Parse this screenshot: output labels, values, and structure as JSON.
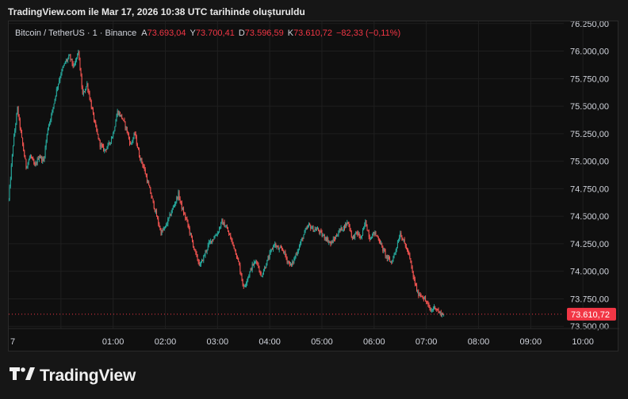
{
  "caption": "TradingView.com ile Mar 17, 2026 10:38 UTC tarihinde oluşturuldu",
  "brand": {
    "name": "TradingView",
    "logo_icon": "tradingview-logo-icon"
  },
  "legend": {
    "symbol": "Bitcoin / TetherUS · 1 · Binance",
    "open_label": "A",
    "open": "73.693,04",
    "high_label": "Y",
    "high": "73.700,41",
    "low_label": "D",
    "low": "73.596,59",
    "close_label": "K",
    "close": "73.610,72",
    "change": "−82,33 (−0,11%)"
  },
  "colors": {
    "up": "#26a69a",
    "down": "#ef5350",
    "price_tag": "#f23645",
    "grid": "#1f1f1f"
  },
  "chart_data": {
    "type": "candlestick",
    "ylim": [
      73480,
      76270
    ],
    "y_ticks": [
      73500,
      73750,
      74000,
      74250,
      74500,
      74750,
      75000,
      75250,
      75500,
      75750,
      76000,
      76250
    ],
    "y_tick_labels": [
      "73.500,00",
      "73.750,00",
      "74.000,00",
      "74.250,00",
      "74.500,00",
      "74.750,00",
      "75.000,00",
      "75.250,00",
      "75.500,00",
      "75.750,00",
      "76.000,00",
      "76.250,00"
    ],
    "x_ticks": [
      0,
      60,
      120,
      180,
      240,
      300,
      360,
      420,
      480,
      540,
      600
    ],
    "x_tick_labels": [
      "01:00",
      "02:00",
      "03:00",
      "04:00",
      "05:00",
      "06:00",
      "07:00",
      "08:00",
      "09:00",
      "10:00"
    ],
    "x_tick_first_partial": "7",
    "x_range": [
      -60,
      578
    ],
    "last_price": 73610.72,
    "last_price_label": "73.610,72",
    "path": [
      [
        -60,
        74650
      ],
      [
        -55,
        75150
      ],
      [
        -50,
        75480
      ],
      [
        -45,
        75200
      ],
      [
        -40,
        74950
      ],
      [
        -35,
        75050
      ],
      [
        -30,
        74950
      ],
      [
        -25,
        75050
      ],
      [
        -20,
        75000
      ],
      [
        -15,
        75300
      ],
      [
        -10,
        75450
      ],
      [
        -5,
        75650
      ],
      [
        0,
        75800
      ],
      [
        5,
        75900
      ],
      [
        10,
        75950
      ],
      [
        15,
        75850
      ],
      [
        20,
        76000
      ],
      [
        25,
        75600
      ],
      [
        30,
        75700
      ],
      [
        35,
        75500
      ],
      [
        40,
        75300
      ],
      [
        45,
        75150
      ],
      [
        50,
        75100
      ],
      [
        55,
        75150
      ],
      [
        60,
        75250
      ],
      [
        65,
        75450
      ],
      [
        70,
        75400
      ],
      [
        75,
        75300
      ],
      [
        80,
        75150
      ],
      [
        85,
        75250
      ],
      [
        90,
        75050
      ],
      [
        95,
        74950
      ],
      [
        100,
        74800
      ],
      [
        105,
        74650
      ],
      [
        110,
        74500
      ],
      [
        115,
        74350
      ],
      [
        120,
        74400
      ],
      [
        125,
        74500
      ],
      [
        130,
        74600
      ],
      [
        135,
        74700
      ],
      [
        140,
        74550
      ],
      [
        145,
        74450
      ],
      [
        150,
        74300
      ],
      [
        155,
        74150
      ],
      [
        160,
        74050
      ],
      [
        165,
        74150
      ],
      [
        170,
        74250
      ],
      [
        175,
        74300
      ],
      [
        180,
        74350
      ],
      [
        185,
        74450
      ],
      [
        190,
        74400
      ],
      [
        195,
        74300
      ],
      [
        200,
        74200
      ],
      [
        205,
        74050
      ],
      [
        210,
        73850
      ],
      [
        215,
        73950
      ],
      [
        220,
        74050
      ],
      [
        225,
        74100
      ],
      [
        230,
        73950
      ],
      [
        235,
        74050
      ],
      [
        240,
        74150
      ],
      [
        245,
        74250
      ],
      [
        250,
        74200
      ],
      [
        255,
        74200
      ],
      [
        260,
        74100
      ],
      [
        265,
        74050
      ],
      [
        270,
        74150
      ],
      [
        275,
        74250
      ],
      [
        280,
        74350
      ],
      [
        285,
        74420
      ],
      [
        290,
        74380
      ],
      [
        295,
        74380
      ],
      [
        300,
        74330
      ],
      [
        305,
        74300
      ],
      [
        310,
        74250
      ],
      [
        315,
        74300
      ],
      [
        320,
        74370
      ],
      [
        325,
        74400
      ],
      [
        330,
        74450
      ],
      [
        335,
        74300
      ],
      [
        340,
        74350
      ],
      [
        345,
        74300
      ],
      [
        350,
        74450
      ],
      [
        355,
        74300
      ],
      [
        360,
        74350
      ],
      [
        365,
        74300
      ],
      [
        370,
        74200
      ],
      [
        375,
        74120
      ],
      [
        380,
        74080
      ],
      [
        385,
        74200
      ],
      [
        390,
        74350
      ],
      [
        395,
        74250
      ],
      [
        400,
        74150
      ],
      [
        405,
        73950
      ],
      [
        410,
        73800
      ],
      [
        415,
        73780
      ],
      [
        420,
        73720
      ],
      [
        425,
        73640
      ],
      [
        430,
        73680
      ],
      [
        435,
        73620
      ],
      [
        440,
        73610.72
      ]
    ]
  }
}
